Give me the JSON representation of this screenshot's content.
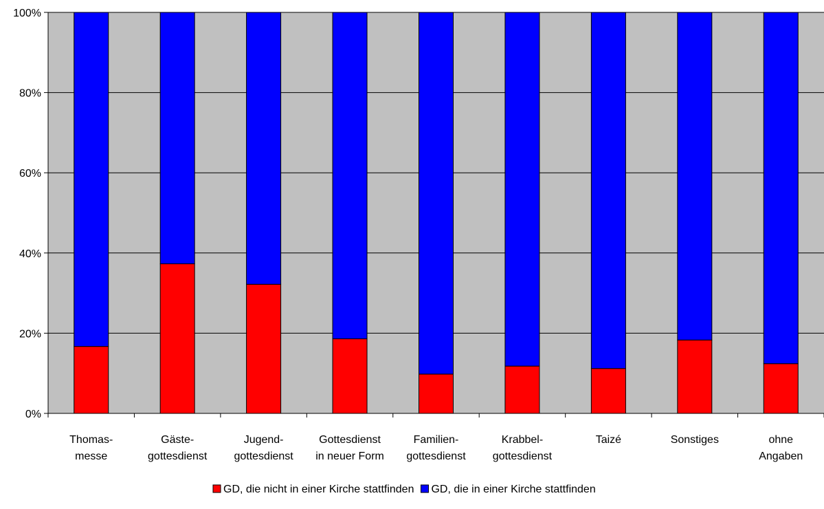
{
  "chart_data": {
    "type": "bar",
    "stacked": true,
    "normalized_percent": true,
    "title": "",
    "xlabel": "",
    "ylabel": "",
    "ylim": [
      0,
      100
    ],
    "y_ticks": [
      "0%",
      "20%",
      "40%",
      "60%",
      "80%",
      "100%"
    ],
    "grid": "horizontal",
    "plot_background": "#c0c0c0",
    "legend_position": "bottom",
    "categories": [
      [
        "Thomas-",
        "messe"
      ],
      [
        "Gäste-",
        "gottesdienst"
      ],
      [
        "Jugend-",
        "gottesdienst"
      ],
      [
        "Gottesdienst",
        "in neuer Form"
      ],
      [
        "Familien-",
        "gottesdienst"
      ],
      [
        "Krabbel-",
        "gottesdienst"
      ],
      [
        "Taizé"
      ],
      [
        "Sonstiges"
      ],
      [
        "ohne",
        "Angaben"
      ]
    ],
    "series": [
      {
        "name": "GD, die nicht in einer Kirche stattfinden",
        "color": "#ff0000",
        "values": [
          16.7,
          37.3,
          32.2,
          18.6,
          9.8,
          11.8,
          11.2,
          18.3,
          12.4
        ]
      },
      {
        "name": "GD, die in einer Kirche stattfinden",
        "color": "#0000ff",
        "values": [
          83.3,
          62.7,
          67.8,
          81.4,
          90.2,
          88.2,
          88.8,
          81.7,
          87.6
        ]
      }
    ]
  }
}
